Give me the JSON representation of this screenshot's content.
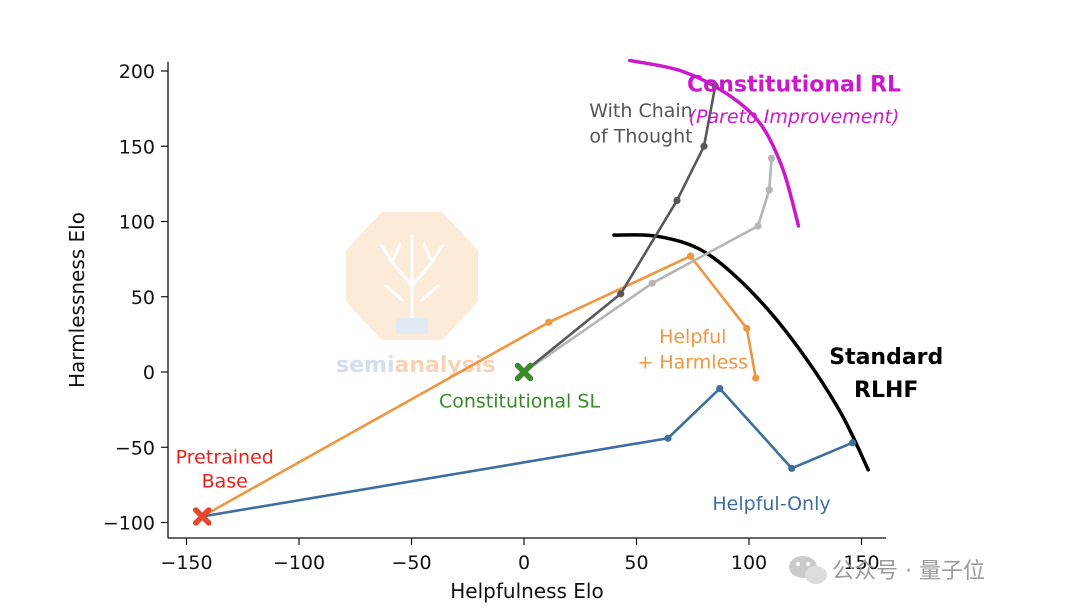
{
  "chart_data": {
    "type": "line",
    "xlabel": "Helpfulness Elo",
    "ylabel": "Harmlessness Elo",
    "xlim": [
      -160,
      160
    ],
    "ylim": [
      -110,
      205
    ],
    "xticks": [
      -150,
      -100,
      -50,
      0,
      50,
      100,
      150
    ],
    "yticks": [
      -100,
      -50,
      0,
      50,
      100,
      150,
      200
    ],
    "grid": false,
    "series": [
      {
        "name": "Helpful-Only",
        "color": "#3c6e9f",
        "x": [
          -143,
          64,
          87,
          119,
          146
        ],
        "y": [
          -96,
          -44,
          -11,
          -64,
          -47
        ]
      },
      {
        "name": "Helpful + Harmless",
        "color": "#ee9640",
        "x": [
          -143,
          11,
          74,
          99,
          103
        ],
        "y": [
          -96,
          33,
          77,
          29,
          -4
        ]
      },
      {
        "name": "Constitutional SL",
        "color": "#b5b5b5",
        "x": [
          0,
          57,
          104,
          109,
          110
        ],
        "y": [
          0,
          59,
          97,
          121,
          142
        ]
      },
      {
        "name": "With Chain of Thought",
        "color": "#585858",
        "x": [
          0,
          43,
          68,
          80,
          85
        ],
        "y": [
          0,
          52,
          114,
          150,
          190
        ]
      }
    ],
    "markers": [
      {
        "name": "Pretrained Base",
        "x": -143,
        "y": -96,
        "symbol": "X",
        "color": "#e8452b"
      },
      {
        "name": "Constitutional SL",
        "x": 0,
        "y": 0,
        "symbol": "X",
        "color": "#3a8a2a"
      }
    ],
    "frontiers": [
      {
        "name": "Standard RLHF",
        "color": "#000000",
        "x": [
          40,
          60,
          80,
          100,
          120,
          140,
          153
        ],
        "y": [
          91,
          90,
          80,
          55,
          20,
          -25,
          -65
        ]
      },
      {
        "name": "Constitutional RL",
        "color": "#cc18cc",
        "x": [
          47,
          70,
          90,
          105,
          115,
          122
        ],
        "y": [
          207,
          200,
          185,
          165,
          135,
          97
        ]
      }
    ],
    "annotations": [
      {
        "text": "With Chain",
        "x": 52,
        "y": 174,
        "color": "#555555",
        "style": "normal"
      },
      {
        "text": "of Thought",
        "x": 52,
        "y": 157,
        "color": "#555555",
        "style": "normal"
      },
      {
        "text": "Constitutional RL",
        "x": 120,
        "y": 191,
        "color": "#cc18cc",
        "style": "bold"
      },
      {
        "text": "(Pareto Improvement)",
        "x": 120,
        "y": 170,
        "color": "#cc18cc",
        "style": "italic"
      },
      {
        "text": "Helpful",
        "x": 75,
        "y": 24,
        "color": "#ee9640",
        "style": "normal"
      },
      {
        "text": "+ Harmless",
        "x": 75,
        "y": 7,
        "color": "#ee9640",
        "style": "normal"
      },
      {
        "text": "Standard",
        "x": 161,
        "y": 10,
        "color": "#000000",
        "style": "bold"
      },
      {
        "text": "RLHF",
        "x": 161,
        "y": -12,
        "color": "#000000",
        "style": "bold"
      },
      {
        "text": "Constitutional SL",
        "x": -2,
        "y": -19,
        "color": "#3a8a2a",
        "style": "normal"
      },
      {
        "text": "Pretrained",
        "x": -133,
        "y": -56,
        "color": "#e8221a",
        "style": "normal"
      },
      {
        "text": "Base",
        "x": -133,
        "y": -72,
        "color": "#e8221a",
        "style": "normal"
      },
      {
        "text": "Helpful-Only",
        "x": 110,
        "y": -87,
        "color": "#3c6e9f",
        "style": "normal"
      }
    ]
  },
  "watermark": {
    "brand_part1": "semi",
    "brand_part2": "analysis",
    "footer_text": "公众号 · 量子位"
  }
}
